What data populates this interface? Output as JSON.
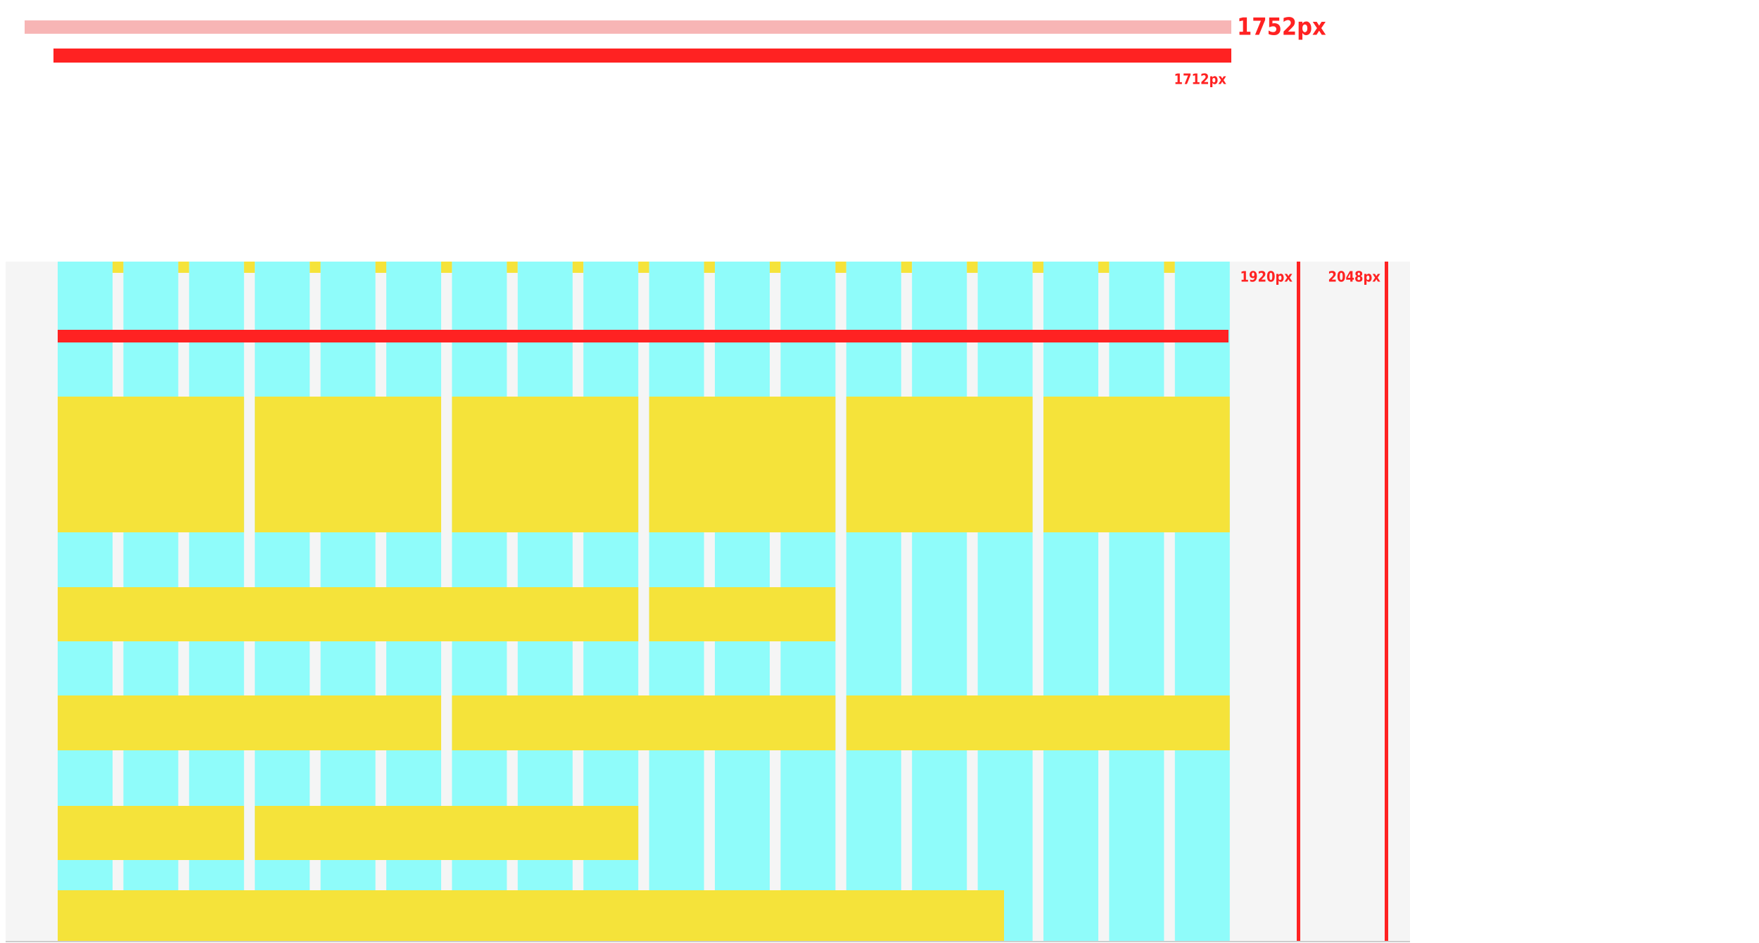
{
  "header": {
    "outer_width_label": "1752px",
    "inner_width_label": "1712px"
  },
  "breakpoints": [
    {
      "label": "1920px"
    },
    {
      "label": "2048px"
    }
  ]
}
